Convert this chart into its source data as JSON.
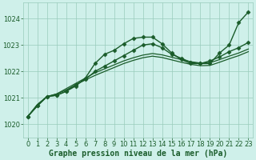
{
  "xlabel": "Graphe pression niveau de la mer (hPa)",
  "background_color": "#cff0ea",
  "grid_color": "#99ccbb",
  "line_color": "#1a5c2a",
  "ylim": [
    1019.5,
    1024.6
  ],
  "yticks": [
    1020,
    1021,
    1022,
    1023,
    1024
  ],
  "xlim": [
    -0.5,
    23.5
  ],
  "xticks": [
    0,
    1,
    2,
    3,
    4,
    5,
    6,
    7,
    8,
    9,
    10,
    11,
    12,
    13,
    14,
    15,
    16,
    17,
    18,
    19,
    20,
    21,
    22,
    23
  ],
  "series": [
    {
      "y": [
        1020.3,
        1020.7,
        1021.05,
        1021.1,
        1021.25,
        1021.45,
        1021.75,
        1022.3,
        1022.65,
        1022.8,
        1023.05,
        1023.25,
        1023.3,
        1023.3,
        1023.05,
        1022.7,
        1022.45,
        1022.3,
        1022.3,
        1022.3,
        1022.7,
        1023.0,
        1023.85,
        1024.25
      ],
      "marker": true,
      "lw": 1.0
    },
    {
      "y": [
        1020.3,
        1020.7,
        1021.05,
        1021.1,
        1021.25,
        1021.5,
        1021.7,
        1022.0,
        1022.2,
        1022.4,
        1022.6,
        1022.8,
        1023.0,
        1023.05,
        1022.9,
        1022.65,
        1022.5,
        1022.35,
        1022.3,
        1022.4,
        1022.55,
        1022.75,
        1022.9,
        1023.1
      ],
      "marker": true,
      "lw": 1.0
    },
    {
      "y": [
        1020.3,
        1020.75,
        1021.05,
        1021.15,
        1021.3,
        1021.5,
        1021.68,
        1021.85,
        1022.0,
        1022.15,
        1022.3,
        1022.42,
        1022.52,
        1022.58,
        1022.53,
        1022.44,
        1022.35,
        1022.27,
        1022.22,
        1022.23,
        1022.35,
        1022.48,
        1022.6,
        1022.75
      ],
      "marker": false,
      "lw": 0.9
    },
    {
      "y": [
        1020.3,
        1020.75,
        1021.05,
        1021.15,
        1021.35,
        1021.55,
        1021.75,
        1021.95,
        1022.1,
        1022.25,
        1022.4,
        1022.52,
        1022.62,
        1022.68,
        1022.63,
        1022.54,
        1022.45,
        1022.37,
        1022.32,
        1022.33,
        1022.45,
        1022.58,
        1022.7,
        1022.85
      ],
      "marker": false,
      "lw": 0.9
    }
  ],
  "marker_symbol": "D",
  "marker_size": 2.5,
  "tick_fontsize": 6,
  "label_fontsize": 7,
  "tick_color": "#1a5c2a",
  "label_color": "#1a5c2a"
}
